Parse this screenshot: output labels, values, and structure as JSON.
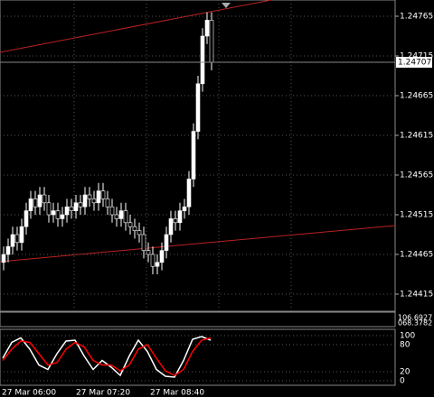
{
  "chart_data": [
    {
      "type": "candlestick",
      "open": [
        1.24455,
        1.24465,
        1.24475,
        1.2449,
        1.2448,
        1.245,
        1.2452,
        1.24535,
        1.24525,
        1.2454,
        1.2453,
        1.24515,
        1.2452,
        1.2451,
        1.24515,
        1.24525,
        1.2452,
        1.2453,
        1.24525,
        1.2454,
        1.24535,
        1.2453,
        1.24545,
        1.24535,
        1.24525,
        1.24515,
        1.2451,
        1.2452,
        1.24505,
        1.245,
        1.24495,
        1.2449,
        1.2447,
        1.24465,
        1.2445,
        1.24455,
        1.2447,
        1.2449,
        1.2451,
        1.24505,
        1.2452,
        1.24525,
        1.2456,
        1.2462,
        1.2468,
        1.2474,
        1.2476
      ],
      "high": [
        1.24475,
        1.24485,
        1.245,
        1.245,
        1.2451,
        1.2453,
        1.24545,
        1.24545,
        1.2455,
        1.2455,
        1.2454,
        1.2453,
        1.2453,
        1.24525,
        1.24535,
        1.24535,
        1.2454,
        1.2454,
        1.2455,
        1.2455,
        1.24545,
        1.24555,
        1.24555,
        1.24545,
        1.24535,
        1.24525,
        1.2453,
        1.2453,
        1.24515,
        1.2451,
        1.24505,
        1.245,
        1.2448,
        1.24475,
        1.24465,
        1.2448,
        1.245,
        1.2452,
        1.2452,
        1.2453,
        1.24535,
        1.2457,
        1.2463,
        1.2469,
        1.2475,
        1.2477,
        1.2477
      ],
      "low": [
        1.24445,
        1.24455,
        1.24465,
        1.2447,
        1.2447,
        1.2449,
        1.2451,
        1.24515,
        1.24515,
        1.2452,
        1.24505,
        1.24505,
        1.245,
        1.245,
        1.24505,
        1.2451,
        1.2451,
        1.24515,
        1.24515,
        1.24525,
        1.2452,
        1.2452,
        1.24525,
        1.24515,
        1.24505,
        1.245,
        1.245,
        1.24495,
        1.2449,
        1.24485,
        1.2448,
        1.2446,
        1.24455,
        1.2444,
        1.2444,
        1.24445,
        1.2446,
        1.2448,
        1.24495,
        1.24495,
        1.2451,
        1.24515,
        1.2455,
        1.2461,
        1.2467,
        1.2473,
        1.24697
      ],
      "close": [
        1.24465,
        1.24475,
        1.2449,
        1.2448,
        1.245,
        1.2452,
        1.24535,
        1.24525,
        1.2454,
        1.2453,
        1.24515,
        1.2452,
        1.2451,
        1.24515,
        1.24525,
        1.2452,
        1.2453,
        1.24525,
        1.2454,
        1.24535,
        1.2453,
        1.24545,
        1.24535,
        1.24525,
        1.24515,
        1.2451,
        1.2452,
        1.24505,
        1.245,
        1.24495,
        1.2449,
        1.2447,
        1.24465,
        1.2445,
        1.24455,
        1.2447,
        1.2449,
        1.2451,
        1.24505,
        1.2452,
        1.24525,
        1.2456,
        1.2462,
        1.2468,
        1.2474,
        1.2476,
        1.24707
      ],
      "ylim": [
        1.244,
        1.2478
      ],
      "yticks": [
        1.24415,
        1.24465,
        1.24515,
        1.24565,
        1.24615,
        1.24665,
        1.24715,
        1.24765
      ],
      "current_price": 1.24707,
      "x_labels": [
        "27 Mar 06:00",
        "27 Mar 07:20",
        "27 Mar 08:40"
      ],
      "bull_color": "#ffffff",
      "bear_color": "#000000",
      "grid": true
    },
    {
      "type": "indicator-labels",
      "labels": [
        "106.6927",
        "068.3782"
      ]
    },
    {
      "type": "line",
      "series": [
        {
          "color": "#ffffff",
          "values": [
            50,
            85,
            95,
            70,
            35,
            25,
            60,
            88,
            90,
            55,
            25,
            45,
            30,
            12,
            55,
            90,
            65,
            25,
            10,
            8,
            45,
            92,
            98,
            90
          ]
        },
        {
          "color": "#ff0000",
          "values": [
            45,
            70,
            88,
            85,
            60,
            35,
            40,
            70,
            85,
            75,
            45,
            35,
            35,
            22,
            35,
            70,
            80,
            50,
            22,
            12,
            25,
            65,
            90,
            95
          ]
        }
      ],
      "ylim": [
        0,
        100
      ],
      "yticks": [
        0,
        20,
        80,
        100
      ]
    }
  ]
}
